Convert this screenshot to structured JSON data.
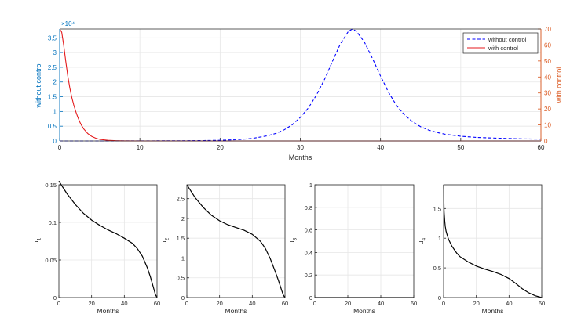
{
  "chart_data": [
    {
      "type": "line",
      "xlabel": "Months",
      "xlim": [
        0,
        60
      ],
      "xticks": [
        0,
        10,
        20,
        30,
        40,
        50,
        60
      ],
      "grid": true,
      "legend_position": "top-right",
      "y_left": {
        "label": "without control",
        "lim": [
          0,
          3.8
        ],
        "ticks": [
          "0",
          "0.5",
          "1",
          "1.5",
          "2",
          "2.5",
          "3",
          "3.5"
        ],
        "multiplier": "×10⁴",
        "color": "#0072bd"
      },
      "y_right": {
        "label": "with control",
        "lim": [
          0,
          70
        ],
        "ticks": [
          "0",
          "10",
          "20",
          "30",
          "40",
          "50",
          "60",
          "70"
        ],
        "color": "#d95319"
      },
      "series": [
        {
          "name": "without control",
          "axis": "left",
          "color": "#0000ff",
          "style": "dashed",
          "x": [
            0,
            5,
            10,
            15,
            18,
            20,
            22,
            24,
            26,
            27,
            28,
            29,
            30,
            31,
            32,
            33,
            34,
            35,
            36,
            36.5,
            37,
            38,
            39,
            40,
            41,
            42,
            43,
            44,
            45,
            46,
            47,
            48,
            50,
            52,
            55,
            58,
            60
          ],
          "y": [
            0,
            0.0005,
            0.002,
            0.006,
            0.012,
            0.02,
            0.04,
            0.085,
            0.18,
            0.26,
            0.38,
            0.55,
            0.8,
            1.12,
            1.55,
            2.08,
            2.7,
            3.3,
            3.72,
            3.8,
            3.72,
            3.35,
            2.8,
            2.2,
            1.65,
            1.2,
            0.88,
            0.65,
            0.48,
            0.37,
            0.29,
            0.23,
            0.16,
            0.12,
            0.09,
            0.07,
            0.06
          ]
        },
        {
          "name": "with control",
          "axis": "right",
          "color": "#e41a1c",
          "style": "solid",
          "x": [
            0,
            0.25,
            0.5,
            0.75,
            1,
            1.25,
            1.5,
            1.75,
            2,
            2.25,
            2.5,
            2.75,
            3,
            3.5,
            4,
            4.5,
            5,
            6,
            7,
            8,
            10,
            60
          ],
          "y": [
            70,
            68,
            60,
            50,
            41,
            33.5,
            27.5,
            22.5,
            18.5,
            15,
            12,
            9.5,
            7.5,
            4.6,
            2.8,
            1.7,
            1.0,
            0.4,
            0.15,
            0.06,
            0,
            0
          ]
        }
      ]
    },
    {
      "type": "line",
      "xlabel": "Months",
      "ylabel": "u1",
      "xlim": [
        0,
        60
      ],
      "ylim": [
        0,
        0.15
      ],
      "xticks": [
        "0",
        "20",
        "40",
        "60"
      ],
      "yticks": [
        "0",
        "0.05",
        "0.1",
        "0.15"
      ],
      "series": [
        {
          "color": "#000000",
          "x": [
            0,
            2,
            5,
            10,
            15,
            20,
            25,
            30,
            35,
            40,
            45,
            48,
            51,
            54,
            56,
            58,
            59,
            60
          ],
          "y": [
            0.155,
            0.148,
            0.138,
            0.124,
            0.112,
            0.103,
            0.096,
            0.09,
            0.085,
            0.079,
            0.072,
            0.065,
            0.055,
            0.04,
            0.027,
            0.012,
            0.004,
            0
          ]
        }
      ]
    },
    {
      "type": "line",
      "xlabel": "Months",
      "ylabel": "u2",
      "xlim": [
        0,
        60
      ],
      "ylim": [
        0,
        2.85
      ],
      "xticks": [
        "0",
        "20",
        "40",
        "60"
      ],
      "yticks": [
        "0",
        "0.5",
        "1",
        "1.5",
        "2",
        "2.5"
      ],
      "series": [
        {
          "color": "#000000",
          "x": [
            0,
            2,
            5,
            10,
            15,
            20,
            25,
            30,
            35,
            40,
            45,
            48,
            51,
            54,
            56,
            58,
            59,
            60
          ],
          "y": [
            2.85,
            2.72,
            2.53,
            2.28,
            2.08,
            1.94,
            1.84,
            1.77,
            1.7,
            1.6,
            1.42,
            1.24,
            0.98,
            0.66,
            0.43,
            0.18,
            0.06,
            0
          ]
        }
      ]
    },
    {
      "type": "line",
      "xlabel": "Months",
      "ylabel": "u3",
      "xlim": [
        0,
        60
      ],
      "ylim": [
        0,
        1
      ],
      "xticks": [
        "0",
        "20",
        "40",
        "60"
      ],
      "yticks": [
        "0",
        "0.2",
        "0.4",
        "0.6",
        "0.8",
        "1"
      ],
      "series": [
        {
          "color": "#000000",
          "x": [
            0,
            60
          ],
          "y": [
            0,
            0
          ]
        }
      ]
    },
    {
      "type": "line",
      "xlabel": "Months",
      "ylabel": "u4",
      "xlim": [
        0,
        60
      ],
      "ylim": [
        0,
        1.9
      ],
      "xticks": [
        "0",
        "20",
        "40",
        "60"
      ],
      "yticks": [
        "0",
        "0.5",
        "1",
        "1.5"
      ],
      "series": [
        {
          "color": "#000000",
          "x": [
            0,
            0.3,
            0.7,
            1,
            1.5,
            2,
            3,
            5,
            8,
            10,
            15,
            20,
            25,
            30,
            35,
            40,
            44,
            48,
            52,
            56,
            60
          ],
          "y": [
            1.9,
            1.45,
            1.28,
            1.2,
            1.12,
            1.07,
            0.98,
            0.87,
            0.75,
            0.69,
            0.6,
            0.53,
            0.48,
            0.44,
            0.39,
            0.32,
            0.24,
            0.15,
            0.08,
            0.03,
            0
          ]
        }
      ]
    }
  ]
}
